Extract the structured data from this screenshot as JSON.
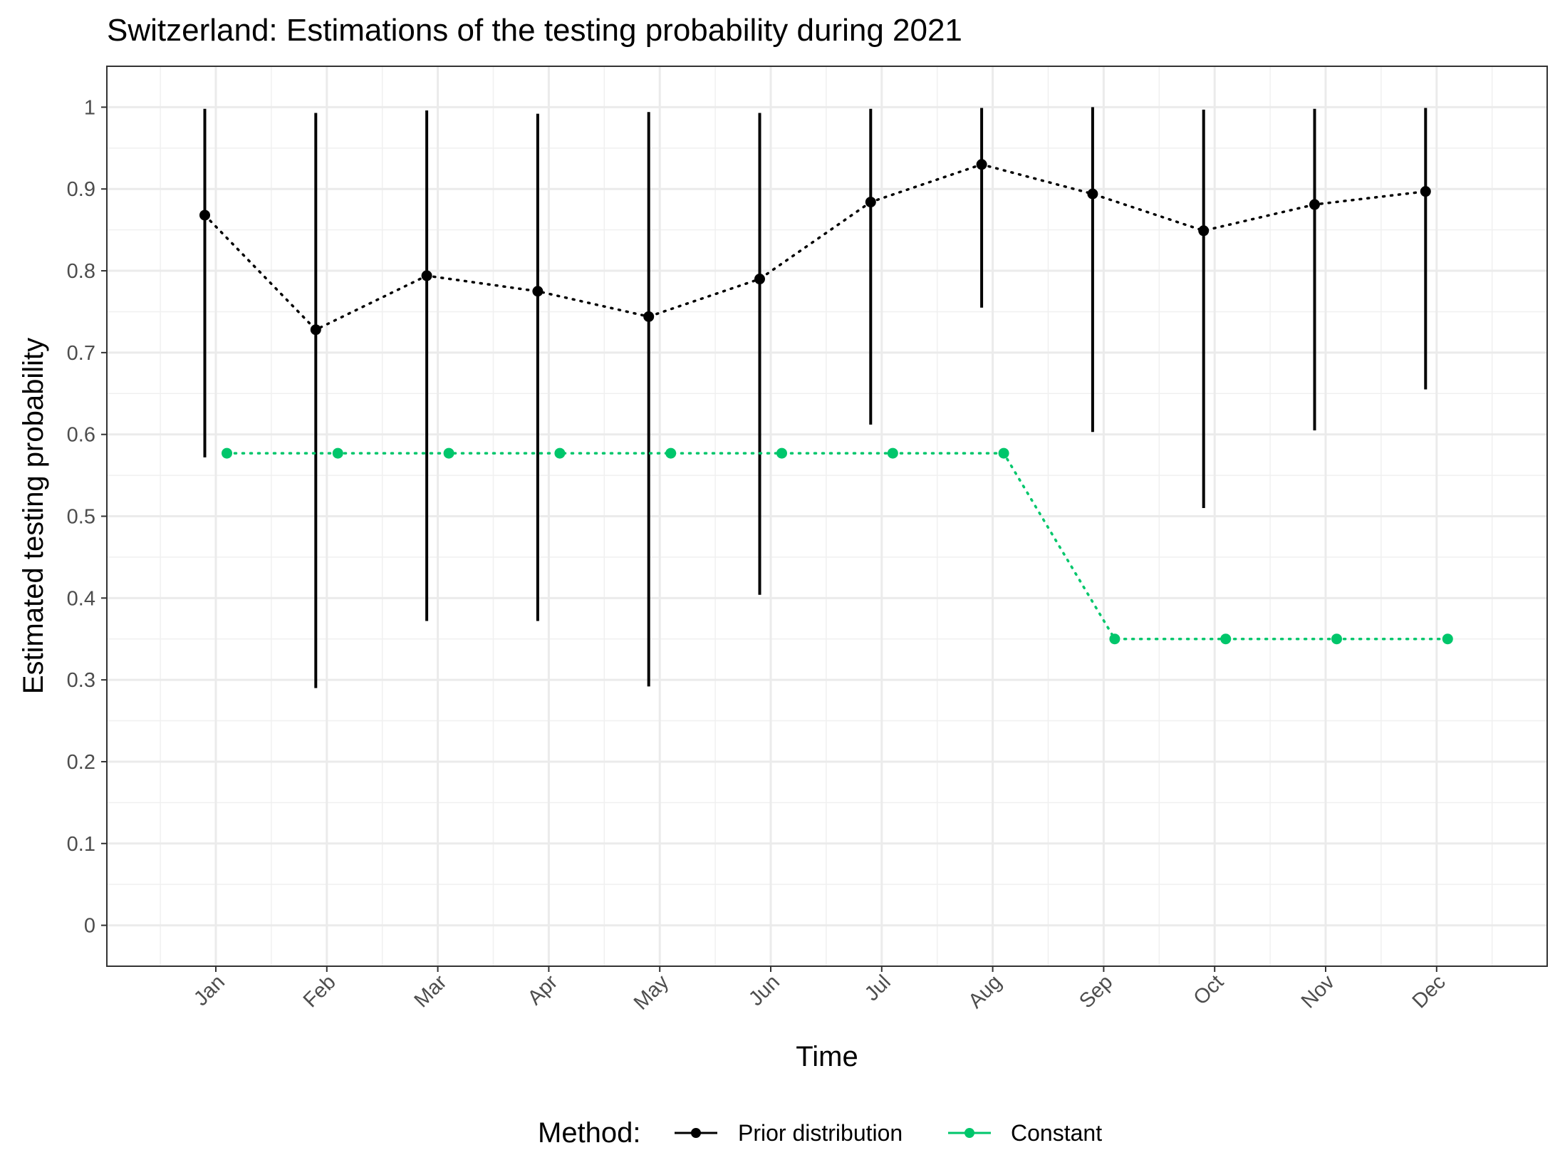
{
  "chart_data": {
    "type": "line",
    "title": "Switzerland: Estimations of the testing probability during 2021",
    "xlabel": "Time",
    "ylabel": "Estimated testing probability",
    "categories": [
      "Jan",
      "Feb",
      "Mar",
      "Apr",
      "May",
      "Jun",
      "Jul",
      "Aug",
      "Sep",
      "Oct",
      "Nov",
      "Dec"
    ],
    "ylim": [
      -0.05,
      1.05
    ],
    "yticks": [
      "0",
      "0.1",
      "0.2",
      "0.3",
      "0.4",
      "0.5",
      "0.6",
      "0.7",
      "0.8",
      "0.9",
      "1"
    ],
    "grid": true,
    "legend": {
      "title": "Method:",
      "position": "bottom"
    },
    "series": [
      {
        "name": "Prior distribution",
        "color": "#000000",
        "values": [
          0.868,
          0.728,
          0.794,
          0.775,
          0.744,
          0.79,
          0.884,
          0.93,
          0.894,
          0.849,
          0.881,
          0.897
        ],
        "lower": [
          0.572,
          0.29,
          0.372,
          0.372,
          0.292,
          0.404,
          0.612,
          0.755,
          0.603,
          0.51,
          0.605,
          0.655
        ],
        "upper": [
          0.998,
          0.993,
          0.996,
          0.992,
          0.994,
          0.993,
          0.998,
          0.999,
          1.0,
          0.997,
          0.998,
          0.999
        ]
      },
      {
        "name": "Constant",
        "color": "#00c66b",
        "values": [
          0.577,
          0.577,
          0.577,
          0.577,
          0.577,
          0.577,
          0.577,
          0.577,
          0.35,
          0.35,
          0.35,
          0.35
        ]
      }
    ]
  }
}
